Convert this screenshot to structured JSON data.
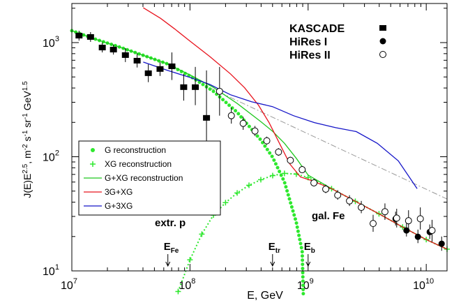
{
  "chart_data": {
    "type": "scatter-line",
    "log_x": true,
    "log_y": true,
    "minor_ticks": true,
    "xlabel": "E, GeV",
    "ylabel": [
      {
        "text": "J(E)E",
        "sup": false
      },
      {
        "text": "2.5",
        "sup": true
      },
      {
        "text": ", m",
        "sup": false
      },
      {
        "text": "-2",
        "sup": true
      },
      {
        "text": " s",
        "sup": false
      },
      {
        "text": "-1",
        "sup": true
      },
      {
        "text": " sr",
        "sup": false
      },
      {
        "text": "-1",
        "sup": true
      },
      {
        "text": " GeV",
        "sup": false
      },
      {
        "text": "1.5",
        "sup": true
      }
    ],
    "xlim": [
      10000000.0,
      15000000000.0
    ],
    "ylim": [
      10,
      2200
    ],
    "xticks": [
      {
        "value": 10000000.0,
        "label": "10",
        "exponent": "7"
      },
      {
        "value": 100000000.0,
        "label": "10",
        "exponent": "8"
      },
      {
        "value": 1000000000.0,
        "label": "10",
        "exponent": "9"
      },
      {
        "value": 10000000000.0,
        "label": "10",
        "exponent": "10"
      }
    ],
    "yticks": [
      {
        "value": 10,
        "label": "10",
        "exponent": "1"
      },
      {
        "value": 100,
        "label": "10",
        "exponent": "2"
      },
      {
        "value": 1000,
        "label": "10",
        "exponent": "3"
      }
    ],
    "series": [
      {
        "name": "KASCADE",
        "style": "square",
        "legend": "top-right",
        "color": "#000000",
        "x": [
          11500000.0,
          14400000.0,
          18100000.0,
          22500000.0,
          28400000.0,
          35700000.0,
          44400000.0,
          55800000.0,
          70300000.0,
          88500000.0,
          111000000.0,
          138000000.0
        ],
        "values": [
          1150,
          1120,
          905,
          868,
          777,
          694,
          539,
          587,
          620,
          407,
          407,
          219
        ],
        "y_low": [
          1040,
          1015,
          820,
          785,
          675,
          605,
          450,
          510,
          470,
          310,
          283,
          80
        ],
        "y_high": [
          1270,
          1235,
          1000,
          960,
          895,
          800,
          645,
          675,
          820,
          530,
          612,
          570
        ]
      },
      {
        "name": "HiRes I",
        "style": "circle-filled",
        "legend": "top-right",
        "color": "#000000",
        "x": [
          5500000000.0,
          6800000000.0,
          8500000000.0,
          10700000000.0,
          13500000000.0
        ],
        "values": [
          28.6,
          22.6,
          19.9,
          21.9,
          17.3
        ],
        "y_low": [
          25,
          20,
          17.5,
          19,
          15
        ],
        "y_high": [
          33,
          26,
          23,
          25.5,
          20
        ]
      },
      {
        "name": "HiRes II",
        "style": "circle-open",
        "legend": "top-right",
        "color": "#000000",
        "x": [
          178000000.0,
          224000000.0,
          282000000.0,
          355000000.0,
          447000000.0,
          562000000.0,
          708000000.0,
          891000000.0,
          1120000000.0,
          1410000000.0,
          1780000000.0,
          2240000000.0,
          2820000000.0,
          3550000000.0,
          4470000000.0,
          5620000000.0,
          7080000000.0,
          8910000000.0,
          11200000000.0
        ],
        "values": [
          374,
          229,
          196,
          168,
          138,
          110,
          93,
          77,
          59,
          52,
          46,
          41,
          36,
          26,
          33,
          29,
          27.5,
          28.6,
          22.6
        ],
        "y_low": [
          229,
          195,
          172,
          152,
          127,
          102,
          87,
          72,
          55,
          48,
          42,
          37,
          32,
          22,
          28,
          24,
          22,
          23,
          18
        ],
        "y_high": [
          612,
          270,
          224,
          186,
          150,
          119,
          100,
          83,
          64,
          57,
          51,
          46,
          41,
          31,
          39,
          35,
          34,
          36,
          28
        ]
      },
      {
        "name": "G reconstruction",
        "style": "dots",
        "legend": "box",
        "color": "#2ee82e",
        "x": [
          10000000.0,
          15800000.0,
          25100000.0,
          39800000.0,
          63100000.0,
          100000000.0,
          158000000.0,
          251000000.0,
          398000000.0,
          501000000.0,
          631000000.0,
          794000000.0,
          891000000.0,
          912000000.0
        ],
        "values": [
          1270,
          1072,
          918,
          776,
          656,
          509,
          374,
          245,
          140,
          99,
          60,
          26.7,
          14.8,
          5.9
        ]
      },
      {
        "name": "XG reconstruction",
        "style": "plus",
        "legend": "box",
        "color": "#2ee82e",
        "x": [
          79400000.0,
          100000000.0,
          126000000.0,
          158000000.0,
          200000000.0,
          251000000.0,
          316000000.0,
          398000000.0,
          501000000.0,
          631000000.0,
          794000000.0,
          1000000000.0,
          1580000000.0,
          2510000000.0,
          3980000000.0,
          6310000000.0,
          10000000000.0,
          15000000000.0
        ],
        "values": [
          6.6,
          12.5,
          21,
          30.8,
          39.6,
          48.2,
          56.2,
          62.9,
          68.4,
          71.4,
          70.5,
          65.6,
          52.5,
          40.7,
          31.6,
          24.2,
          18.8,
          15.5
        ]
      },
      {
        "name": "G+XG reconstruction",
        "style": "line",
        "legend": "box",
        "color": "#1fc81f",
        "x": [
          10000000.0,
          15800000.0,
          25100000.0,
          39800000.0,
          63100000.0,
          100000000.0,
          158000000.0,
          251000000.0,
          398000000.0,
          501000000.0,
          631000000.0,
          794000000.0,
          1000000000.0,
          1580000000.0,
          2510000000.0,
          3980000000.0,
          6310000000.0,
          10000000000.0,
          15000000000.0
        ],
        "values": [
          1270,
          1072,
          918,
          776,
          656,
          522,
          405,
          293,
          203,
          167,
          131,
          97,
          69,
          52.5,
          40.7,
          31.6,
          24.2,
          18.8,
          15.5
        ]
      },
      {
        "name": "3G+XG",
        "style": "line",
        "legend": "box",
        "color": "#e8141e",
        "x": [
          40200000.0,
          56400000.0,
          74100000.0,
          100000000.0,
          147000000.0,
          220000000.0,
          290000000.0,
          380000000.0,
          467000000.0,
          572000000.0,
          702000000.0,
          861000000.0,
          1060000000.0,
          1580000000.0,
          2510000000.0,
          3980000000.0,
          6310000000.0,
          10000000000.0,
          15000000000.0
        ],
        "values": [
          2020,
          1630,
          1320,
          1030,
          755,
          532,
          402,
          283,
          199,
          131,
          86,
          66.5,
          62,
          52.5,
          40.7,
          31.6,
          24.2,
          18.8,
          15.5
        ]
      },
      {
        "name": "G+3XG",
        "style": "line",
        "legend": "box",
        "color": "#1414c8",
        "x": [
          40200000.0,
          64700000.0,
          100000000.0,
          147000000.0,
          220000000.0,
          332000000.0,
          499000000.0,
          752000000.0,
          1130000000.0,
          1700000000.0,
          2560000000.0,
          3850000000.0,
          5800000000.0,
          8370000000.0
        ],
        "values": [
          675,
          570,
          495,
          430,
          349,
          303,
          275,
          229,
          199,
          180,
          166,
          131,
          92,
          52.5
        ]
      },
      {
        "style": "dashdot",
        "color": "#999999",
        "x": [
          147000000.0,
          15100000000.0
        ],
        "values": [
          402,
          42.5
        ]
      }
    ],
    "labels": [
      "extr. p",
      "gal. Fe"
    ],
    "annotations": [
      {
        "text": "E",
        "sub": "Fe",
        "x": 65000000.0
      },
      {
        "text": "E",
        "sub": "tr",
        "x": 500000000.0
      },
      {
        "text": "E",
        "sub": "b",
        "x": 1000000000.0
      }
    ]
  }
}
